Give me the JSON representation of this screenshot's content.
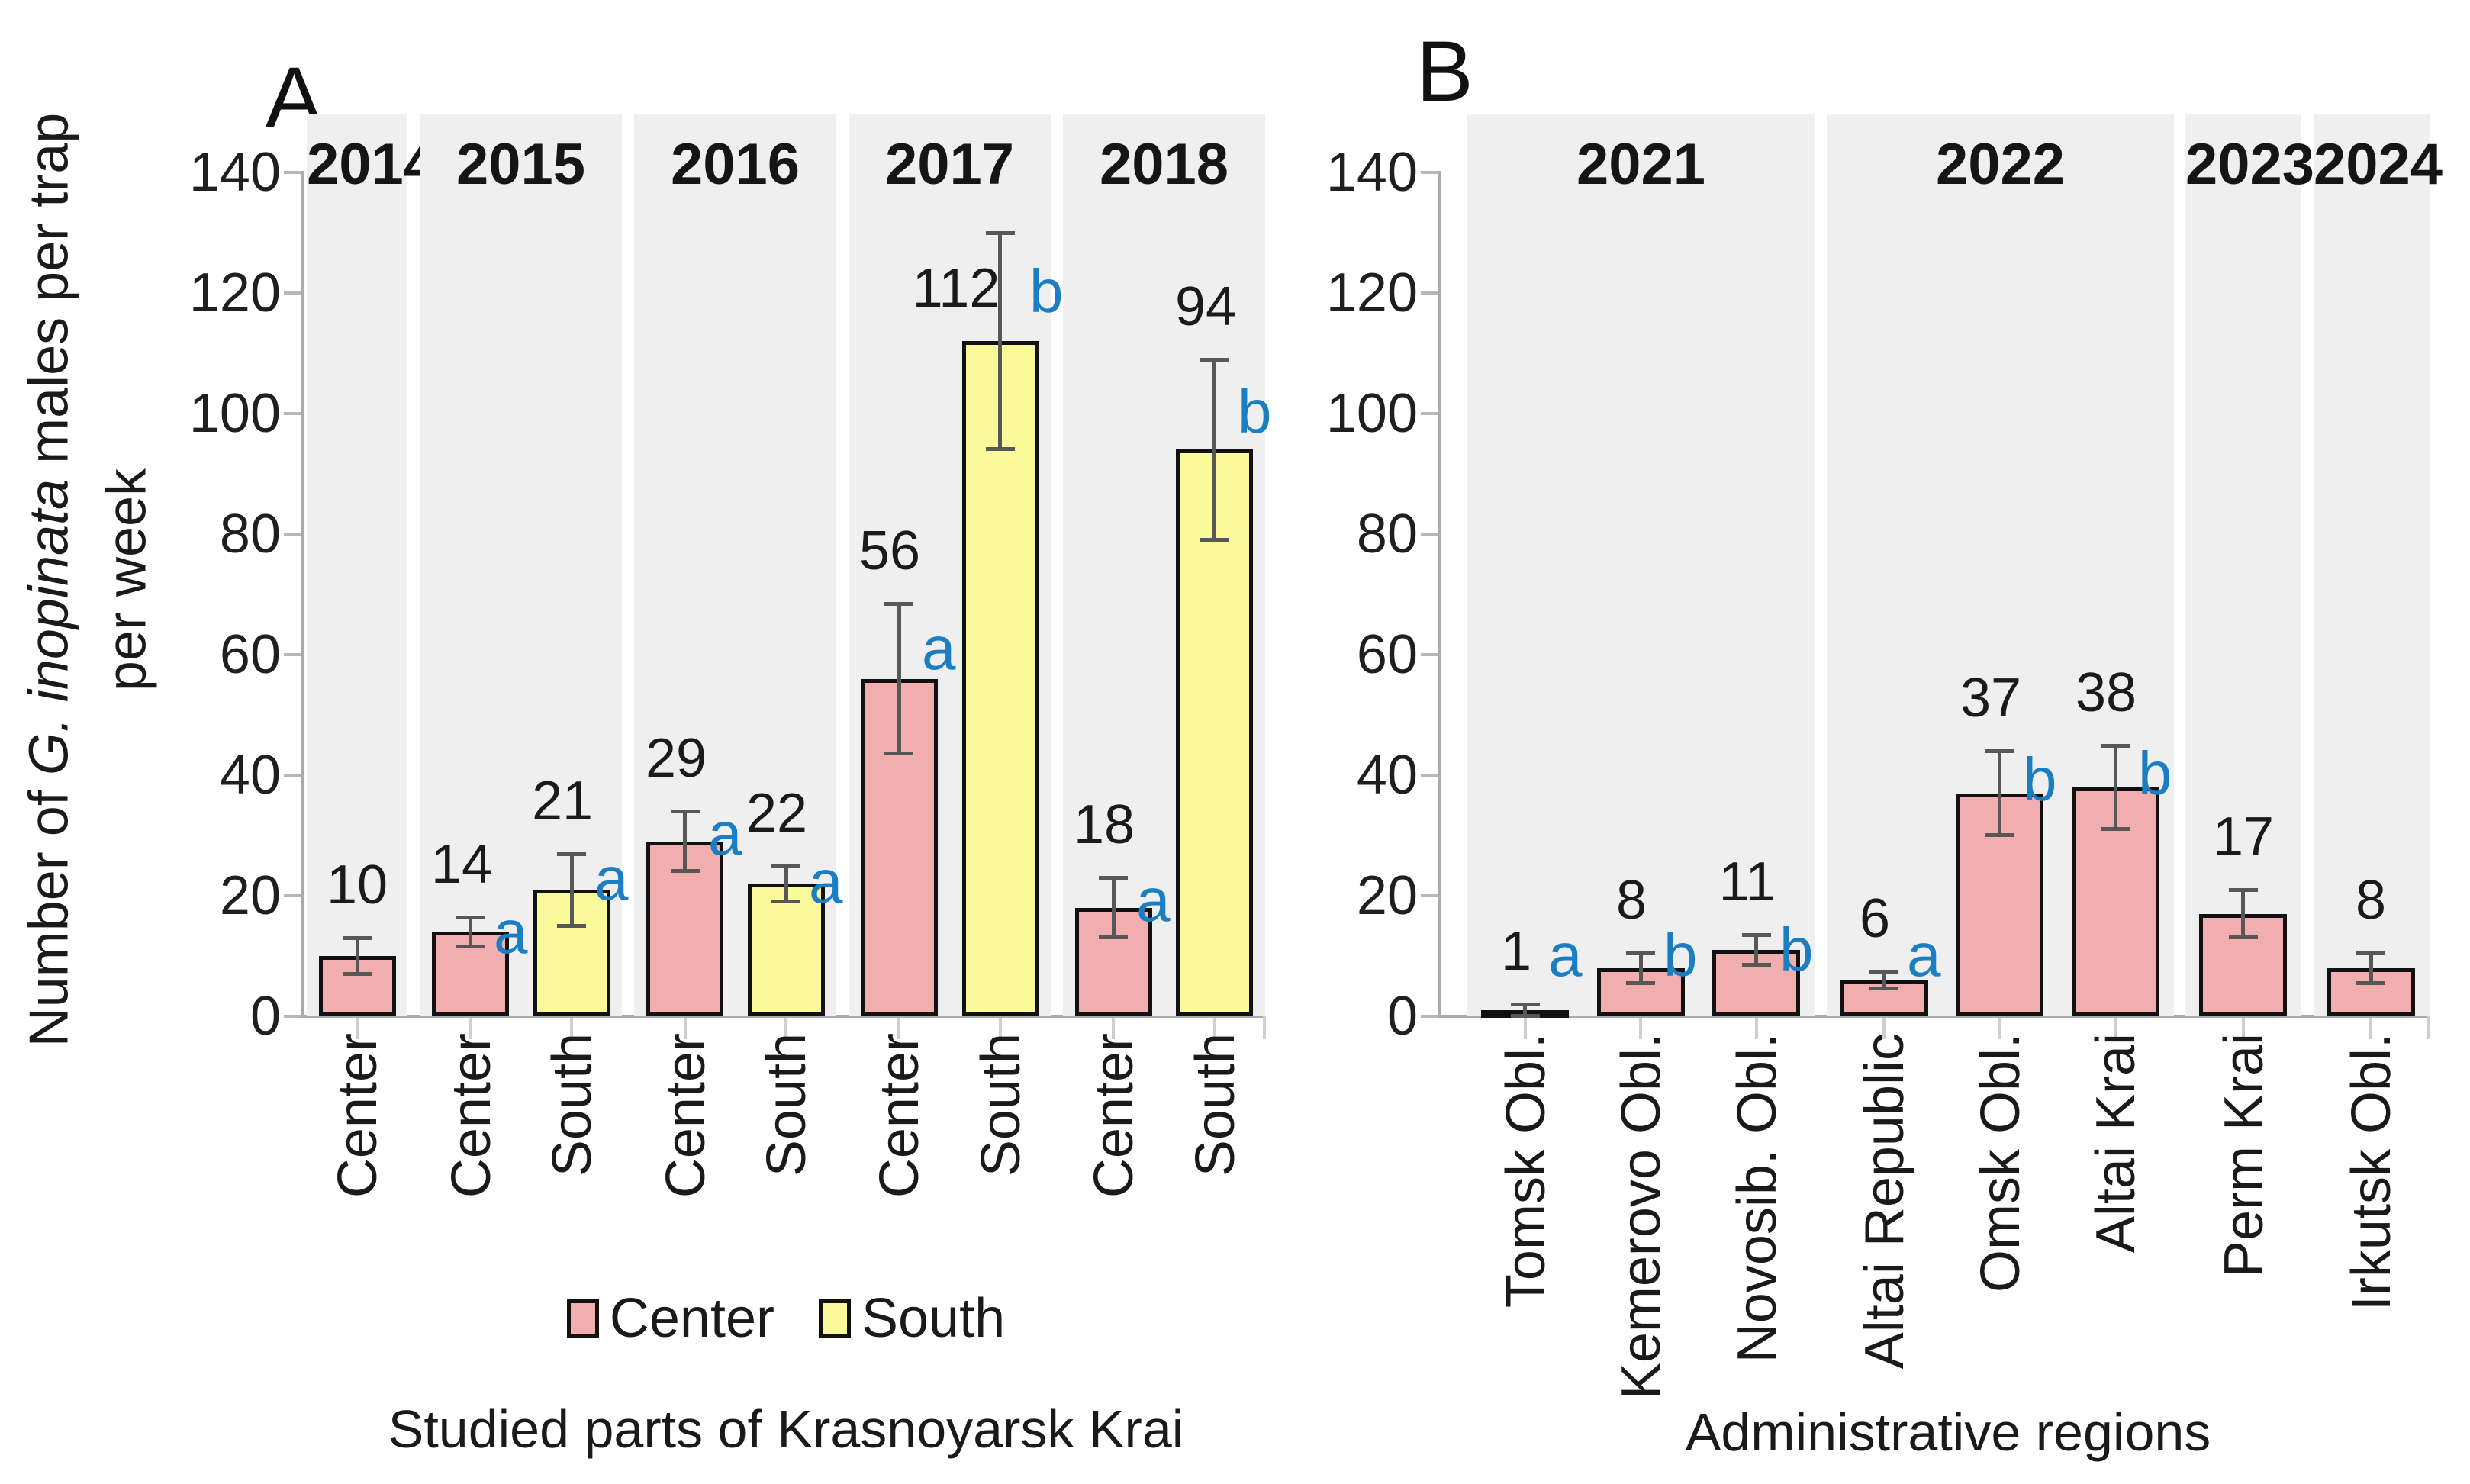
{
  "colors": {
    "bar_center": "#F2AEAE",
    "bar_south": "#FAFA9B",
    "bar_border": "#111111",
    "band_background": "#EFEFEF",
    "significance_letter": "#1B7EC3",
    "error_bar": "#575757",
    "axis_line": "#ABABAB",
    "tick_mark": "#B7B7B7",
    "category_tick": "#CFCFCF",
    "text": "#1A1A1A"
  },
  "chart_data": [
    {
      "type": "bar",
      "panel_label": "A",
      "ylabel": {
        "pre": "Number of ",
        "italic": "G. inopinata",
        "post": " males  per trap",
        "line2": "per week"
      },
      "xlabel": "Studied parts of Krasnoyarsk Krai",
      "ylim": [
        0,
        140
      ],
      "yticks": [
        0,
        20,
        40,
        60,
        80,
        100,
        120,
        140
      ],
      "grid": false,
      "legend": {
        "position": "bottom",
        "entries": [
          {
            "name": "Center",
            "color": "#F2AEAE"
          },
          {
            "name": "South",
            "color": "#FAFA9B"
          }
        ]
      },
      "series_colors": {
        "Center": "#F2AEAE",
        "South": "#FAFA9B"
      },
      "groups": [
        {
          "label": "2014",
          "bars": [
            {
              "category": "Center",
              "series": "Center",
              "value": 10,
              "error": 3,
              "sig": ""
            }
          ]
        },
        {
          "label": "2015",
          "bars": [
            {
              "category": "Center",
              "series": "Center",
              "value": 14,
              "error": 2.5,
              "sig": "a"
            },
            {
              "category": "South",
              "series": "South",
              "value": 21,
              "error": 6,
              "sig": "a"
            }
          ]
        },
        {
          "label": "2016",
          "bars": [
            {
              "category": "Center",
              "series": "Center",
              "value": 29,
              "error": 5,
              "sig": "a"
            },
            {
              "category": "South",
              "series": "South",
              "value": 22,
              "error": 3,
              "sig": "a"
            }
          ]
        },
        {
          "label": "2017",
          "bars": [
            {
              "category": "Center",
              "series": "Center",
              "value": 56,
              "error": 12.5,
              "sig": "a"
            },
            {
              "category": "South",
              "series": "South",
              "value": 112,
              "error": 18,
              "sig": "b",
              "label_beside": true
            }
          ]
        },
        {
          "label": "2018",
          "bars": [
            {
              "category": "Center",
              "series": "Center",
              "value": 18,
              "error": 5,
              "sig": "a"
            },
            {
              "category": "South",
              "series": "South",
              "value": 94,
              "error": 15,
              "sig": "b"
            }
          ]
        }
      ]
    },
    {
      "type": "bar",
      "panel_label": "B",
      "xlabel": "Administrative regions",
      "ylim": [
        0,
        140
      ],
      "yticks": [
        0,
        20,
        40,
        60,
        80,
        100,
        120,
        140
      ],
      "grid": false,
      "series_colors": {
        "Center": "#F2AEAE"
      },
      "groups": [
        {
          "label": "2021",
          "bars": [
            {
              "category": "Tomsk Obl.",
              "series": "Center",
              "value": 1,
              "error": 1,
              "sig": "a"
            },
            {
              "category": "Kemerovo Obl.",
              "series": "Center",
              "value": 8,
              "error": 2.5,
              "sig": "b"
            },
            {
              "category": "Novosib. Obl.",
              "series": "Center",
              "value": 11,
              "error": 2.5,
              "sig": "b"
            }
          ]
        },
        {
          "label": "2022",
          "bars": [
            {
              "category": "Altai Republic",
              "series": "Center",
              "value": 6,
              "error": 1.5,
              "sig": "a"
            },
            {
              "category": "Omsk Obl.",
              "series": "Center",
              "value": 37,
              "error": 7,
              "sig": "b"
            },
            {
              "category": "Altai Krai",
              "series": "Center",
              "value": 38,
              "error": 7,
              "sig": "b"
            }
          ]
        },
        {
          "label": "2023",
          "bars": [
            {
              "category": "Perm Krai",
              "series": "Center",
              "value": 17,
              "error": 4,
              "sig": ""
            }
          ]
        },
        {
          "label": "2024",
          "bars": [
            {
              "category": "Irkutsk Obl.",
              "series": "Center",
              "value": 8,
              "error": 2.5,
              "sig": ""
            }
          ]
        }
      ]
    }
  ]
}
